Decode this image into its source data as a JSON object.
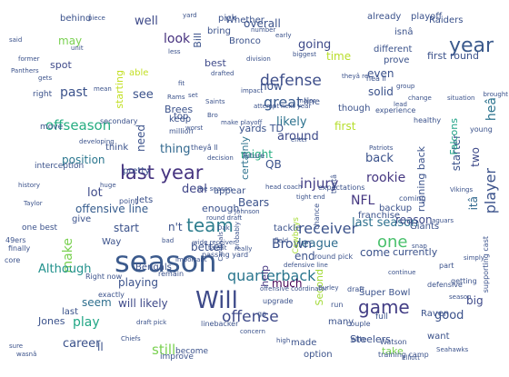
{
  "words": [
    {
      "text": "season",
      "color": "#3b5a8c"
    },
    {
      "text": "Will",
      "color": "#3e4a89"
    },
    {
      "text": "last year",
      "color": "#463480"
    },
    {
      "text": "year",
      "color": "#3b5a8c"
    },
    {
      "text": "team",
      "color": "#2e7e8e"
    },
    {
      "text": "game",
      "color": "#433e85"
    },
    {
      "text": "defense",
      "color": "#3d4e8a"
    },
    {
      "text": "player",
      "color": "#3b528b"
    },
    {
      "text": "offense",
      "color": "#3e4989"
    },
    {
      "text": "quarterback",
      "color": "#2a768e"
    },
    {
      "text": "receiver",
      "color": "#3b528b"
    },
    {
      "text": "offseason",
      "color": "#26ad81"
    },
    {
      "text": "injury",
      "color": "#433e85"
    },
    {
      "text": "one",
      "color": "#4ac16d"
    },
    {
      "text": "league",
      "color": "#2f6c8e"
    },
    {
      "text": "Brown",
      "color": "#3b528b"
    },
    {
      "text": "NFL",
      "color": "#453781"
    },
    {
      "text": "last season",
      "color": "#2d708e"
    },
    {
      "text": "rookie",
      "color": "#453781"
    },
    {
      "text": "back",
      "color": "#3b528b"
    },
    {
      "text": "great",
      "color": "#38598c"
    },
    {
      "text": "make",
      "color": "#7ad151"
    },
    {
      "text": "position",
      "color": "#2a768e"
    },
    {
      "text": "lot",
      "color": "#3e4a89"
    },
    {
      "text": "offensive line",
      "color": "#365c8d"
    },
    {
      "text": "playing",
      "color": "#3b528b"
    },
    {
      "text": "better",
      "color": "#3b528b"
    },
    {
      "text": "thing",
      "color": "#31688e"
    },
    {
      "text": "Although",
      "color": "#21918c"
    },
    {
      "text": "career",
      "color": "#3b528b"
    },
    {
      "text": "play",
      "color": "#21a685"
    },
    {
      "text": "look",
      "color": "#46317e"
    },
    {
      "text": "well",
      "color": "#3e4a89"
    },
    {
      "text": "going",
      "color": "#3e4a89"
    },
    {
      "text": "time",
      "color": "#b8de29"
    },
    {
      "text": "likely",
      "color": "#2c728e"
    },
    {
      "text": "first",
      "color": "#b5de2b"
    },
    {
      "text": "heâ",
      "color": "#2c738e"
    },
    {
      "text": "starter",
      "color": "#3b528b"
    },
    {
      "text": "Falcons",
      "color": "#20a386"
    },
    {
      "text": "two",
      "color": "#3e4989"
    },
    {
      "text": "itâ",
      "color": "#31688e"
    },
    {
      "text": "QB",
      "color": "#3b528b"
    },
    {
      "text": "around",
      "color": "#3e4a89"
    },
    {
      "text": "might",
      "color": "#26ad81"
    },
    {
      "text": "deal",
      "color": "#404688"
    },
    {
      "text": "Bears",
      "color": "#3b528b"
    },
    {
      "text": "certainly",
      "color": "#2c728e"
    },
    {
      "text": "much",
      "color": "#440154"
    },
    {
      "text": "help",
      "color": "#453781"
    },
    {
      "text": "Second",
      "color": "#a2da37"
    },
    {
      "text": "end",
      "color": "#3b528b"
    },
    {
      "text": "come",
      "color": "#3b528b"
    },
    {
      "text": "currently",
      "color": "#3b528b"
    },
    {
      "text": "reason",
      "color": "#3e4989"
    },
    {
      "text": "good",
      "color": "#3b528b"
    },
    {
      "text": "big",
      "color": "#3e4989"
    },
    {
      "text": "still",
      "color": "#7ad151"
    },
    {
      "text": "seem",
      "color": "#2e6f8e"
    },
    {
      "text": "will likely",
      "color": "#3e4989"
    },
    {
      "text": "ll",
      "color": "#3b528b"
    },
    {
      "text": "past",
      "color": "#3b528b"
    },
    {
      "text": "see",
      "color": "#3b528b"
    },
    {
      "text": "need",
      "color": "#3b528b"
    },
    {
      "text": "start",
      "color": "#3b528b"
    },
    {
      "text": "n't",
      "color": "#3b528b"
    },
    {
      "text": "enough",
      "color": "#3b528b"
    },
    {
      "text": "may",
      "color": "#7ad151"
    },
    {
      "text": "starting",
      "color": "#c2df23"
    },
    {
      "text": "spot",
      "color": "#3e4989"
    },
    {
      "text": "now",
      "color": "#3b528b"
    },
    {
      "text": "solid",
      "color": "#3b528b"
    },
    {
      "text": "even",
      "color": "#3b528b"
    },
    {
      "text": "best",
      "color": "#3e4989"
    },
    {
      "text": "Bill",
      "color": "#3b528b"
    },
    {
      "text": "overall",
      "color": "#3b528b"
    },
    {
      "text": "yards TD",
      "color": "#3b528b"
    },
    {
      "text": "Brees",
      "color": "#3b528b"
    },
    {
      "text": "first round",
      "color": "#3b528b"
    },
    {
      "text": "running back",
      "color": "#3b528b"
    },
    {
      "text": "Super Bowl",
      "color": "#3b528b"
    },
    {
      "text": "Steelers",
      "color": "#3b528b"
    },
    {
      "text": "take",
      "color": "#7ad151"
    },
    {
      "text": "made",
      "color": "#3b528b"
    },
    {
      "text": "option",
      "color": "#3b528b"
    },
    {
      "text": "many",
      "color": "#3b528b"
    },
    {
      "text": "want",
      "color": "#3b528b"
    },
    {
      "text": "Jones",
      "color": "#3b528b"
    },
    {
      "text": "last",
      "color": "#3b528b"
    },
    {
      "text": "Bengals",
      "color": "#3b528b"
    },
    {
      "text": "Way",
      "color": "#3b528b"
    },
    {
      "text": "give",
      "color": "#3b528b"
    },
    {
      "text": "Jets",
      "color": "#3b528b"
    },
    {
      "text": "Raven",
      "color": "#3b528b"
    },
    {
      "text": "Giants",
      "color": "#3b528b"
    },
    {
      "text": "franchise",
      "color": "#3b528b"
    },
    {
      "text": "backup",
      "color": "#3b528b"
    },
    {
      "text": "Cowboys",
      "color": "#a5db36"
    },
    {
      "text": "tackle",
      "color": "#3b528b"
    },
    {
      "text": "keep",
      "color": "#3b528b"
    },
    {
      "text": "appear",
      "color": "#3b528b"
    },
    {
      "text": "think",
      "color": "#3b528b"
    },
    {
      "text": "pretty",
      "color": "#3b528b"
    },
    {
      "text": "top",
      "color": "#3b528b"
    },
    {
      "text": "able",
      "color": "#c2df23"
    },
    {
      "text": "bring",
      "color": "#3b528b"
    },
    {
      "text": "pick",
      "color": "#3b528b"
    },
    {
      "text": "Bronco",
      "color": "#3b528b"
    },
    {
      "text": "Whether",
      "color": "#3b528b"
    },
    {
      "text": "already",
      "color": "#3b528b"
    },
    {
      "text": "Raiders",
      "color": "#3b528b"
    },
    {
      "text": "playoff",
      "color": "#3b528b"
    },
    {
      "text": "isnâ",
      "color": "#3b528b"
    },
    {
      "text": "behind",
      "color": "#3b528b"
    },
    {
      "text": "different",
      "color": "#3b528b"
    },
    {
      "text": "prove",
      "color": "#3b528b"
    },
    {
      "text": "line",
      "color": "#3b528b"
    },
    {
      "text": "though",
      "color": "#3b528b"
    },
    {
      "text": "right",
      "color": "#3b528b"
    },
    {
      "text": "move",
      "color": "#3b528b"
    },
    {
      "text": "interception",
      "color": "#3b528b"
    },
    {
      "text": "one best",
      "color": "#3b528b"
    },
    {
      "text": "49ers",
      "color": "#3b528b"
    },
    {
      "text": "exactly",
      "color": "#3b528b"
    },
    {
      "text": "linebacker",
      "color": "#3b528b"
    },
    {
      "text": "become",
      "color": "#3b528b"
    },
    {
      "text": "improve",
      "color": "#3b528b"
    },
    {
      "text": "go",
      "color": "#3b528b"
    },
    {
      "text": "upgrade",
      "color": "#3b528b"
    },
    {
      "text": "run",
      "color": "#3b528b"
    },
    {
      "text": "elite",
      "color": "#3b528b"
    },
    {
      "text": "couple",
      "color": "#3b528b"
    },
    {
      "text": "full",
      "color": "#3b528b"
    },
    {
      "text": "Watson",
      "color": "#3b528b"
    },
    {
      "text": "training camp",
      "color": "#3b528b"
    },
    {
      "text": "defensive",
      "color": "#3b528b"
    },
    {
      "text": "getting",
      "color": "#3b528b"
    },
    {
      "text": "part",
      "color": "#3b528b"
    },
    {
      "text": "supporting cast",
      "color": "#3b528b"
    },
    {
      "text": "chance",
      "color": "#3b528b"
    },
    {
      "text": "coming",
      "color": "#3b528b"
    },
    {
      "text": "point",
      "color": "#3b528b"
    },
    {
      "text": "remain",
      "color": "#3b528b"
    },
    {
      "text": "passing yard",
      "color": "#3b528b"
    },
    {
      "text": "finally",
      "color": "#3b528b"
    },
    {
      "text": "core",
      "color": "#3b528b"
    },
    {
      "text": "secondary",
      "color": "#3b528b"
    },
    {
      "text": "million",
      "color": "#3b528b"
    },
    {
      "text": "thatâ",
      "color": "#3b528b"
    },
    {
      "text": "theyâ ll",
      "color": "#3b528b"
    },
    {
      "text": "heâ ll",
      "color": "#3b528b"
    },
    {
      "text": "experience",
      "color": "#3b528b"
    },
    {
      "text": "healthy",
      "color": "#3b528b"
    },
    {
      "text": "young",
      "color": "#3b528b"
    },
    {
      "text": "Saints",
      "color": "#3b528b"
    },
    {
      "text": "drafted",
      "color": "#3b528b"
    },
    {
      "text": "division",
      "color": "#3b528b"
    },
    {
      "text": "number",
      "color": "#3b528b"
    },
    {
      "text": "biggest",
      "color": "#3b528b"
    },
    {
      "text": "yard",
      "color": "#3b528b"
    },
    {
      "text": "less",
      "color": "#3b528b"
    },
    {
      "text": "said",
      "color": "#3b528b"
    },
    {
      "text": "Panthers",
      "color": "#3b528b"
    },
    {
      "text": "wide receiver",
      "color": "#3b528b"
    },
    {
      "text": "draft pick",
      "color": "#3b528b"
    },
    {
      "text": "really",
      "color": "#3b528b"
    },
    {
      "text": "Right now",
      "color": "#3b528b"
    },
    {
      "text": "round pick",
      "color": "#3b528b"
    },
    {
      "text": "draft",
      "color": "#3b528b"
    },
    {
      "text": "continue",
      "color": "#3b528b"
    },
    {
      "text": "concern",
      "color": "#3b528b"
    },
    {
      "text": "high",
      "color": "#3b528b"
    },
    {
      "text": "Chiefs",
      "color": "#3b528b"
    },
    {
      "text": "simply",
      "color": "#3b528b"
    },
    {
      "text": "Seahawks",
      "color": "#3b528b"
    },
    {
      "text": "Elliott",
      "color": "#3b528b"
    },
    {
      "text": "future",
      "color": "#3b528b"
    },
    {
      "text": "expectations",
      "color": "#3b528b"
    },
    {
      "text": "head coach",
      "color": "#3b528b"
    },
    {
      "text": "tight end",
      "color": "#3b528b"
    },
    {
      "text": "theyâ re",
      "color": "#3b528b"
    },
    {
      "text": "group",
      "color": "#3b528b"
    },
    {
      "text": "gets",
      "color": "#3b528b"
    },
    {
      "text": "mean",
      "color": "#3b528b"
    },
    {
      "text": "make playoff",
      "color": "#3b528b"
    },
    {
      "text": "Johnson",
      "color": "#3b528b"
    },
    {
      "text": "talent",
      "color": "#3b528b"
    },
    {
      "text": "field",
      "color": "#3b528b"
    },
    {
      "text": "fit",
      "color": "#3b528b"
    },
    {
      "text": "set",
      "color": "#3b528b"
    },
    {
      "text": "Rams",
      "color": "#3b528b"
    },
    {
      "text": "brought",
      "color": "#3b528b"
    },
    {
      "text": "former",
      "color": "#3b528b"
    },
    {
      "text": "piece",
      "color": "#3b528b"
    },
    {
      "text": "unit",
      "color": "#3b528b"
    },
    {
      "text": "lead",
      "color": "#3b528b"
    },
    {
      "text": "early",
      "color": "#3b528b"
    },
    {
      "text": "major",
      "color": "#3b528b"
    },
    {
      "text": "next year",
      "color": "#3b528b"
    },
    {
      "text": "attempt",
      "color": "#3b528b"
    },
    {
      "text": "worst",
      "color": "#3b528b"
    },
    {
      "text": "Taylor",
      "color": "#3b528b"
    },
    {
      "text": "history",
      "color": "#3b528b"
    },
    {
      "text": "huge",
      "color": "#3b528b"
    },
    {
      "text": "developing",
      "color": "#3b528b"
    },
    {
      "text": "important",
      "color": "#3b528b"
    },
    {
      "text": "offensive coordinator",
      "color": "#3b528b"
    },
    {
      "text": "defensive line",
      "color": "#3b528b"
    },
    {
      "text": "sure",
      "color": "#3b528b"
    },
    {
      "text": "wasnâ",
      "color": "#3b528b"
    },
    {
      "text": "Dak",
      "color": "#3b528b"
    },
    {
      "text": "Burley",
      "color": "#3b528b"
    },
    {
      "text": "Cardinals",
      "color": "#3b528b"
    },
    {
      "text": "probably",
      "color": "#3b528b"
    },
    {
      "text": "round draft",
      "color": "#3b528b"
    },
    {
      "text": "Vikings",
      "color": "#3b528b"
    },
    {
      "text": "Jaguars",
      "color": "#3b528b"
    },
    {
      "text": "Patriots",
      "color": "#3b528b"
    },
    {
      "text": "situation",
      "color": "#3b528b"
    },
    {
      "text": "change",
      "color": "#3b528b"
    },
    {
      "text": "snap",
      "color": "#3b528b"
    },
    {
      "text": "season",
      "color": "#3b528b"
    },
    {
      "text": "the season",
      "color": "#3b528b"
    },
    {
      "text": "bad",
      "color": "#3b528b"
    },
    {
      "text": "Bro",
      "color": "#3b528b"
    },
    {
      "text": "impact",
      "color": "#3b528b"
    },
    {
      "text": "decision",
      "color": "#3b528b"
    },
    {
      "text": "enter",
      "color": "#3b528b"
    },
    {
      "text": "issue",
      "color": "#3b528b"
    },
    {
      "text": "Bucc",
      "color": "#3b528b"
    }
  ]
}
